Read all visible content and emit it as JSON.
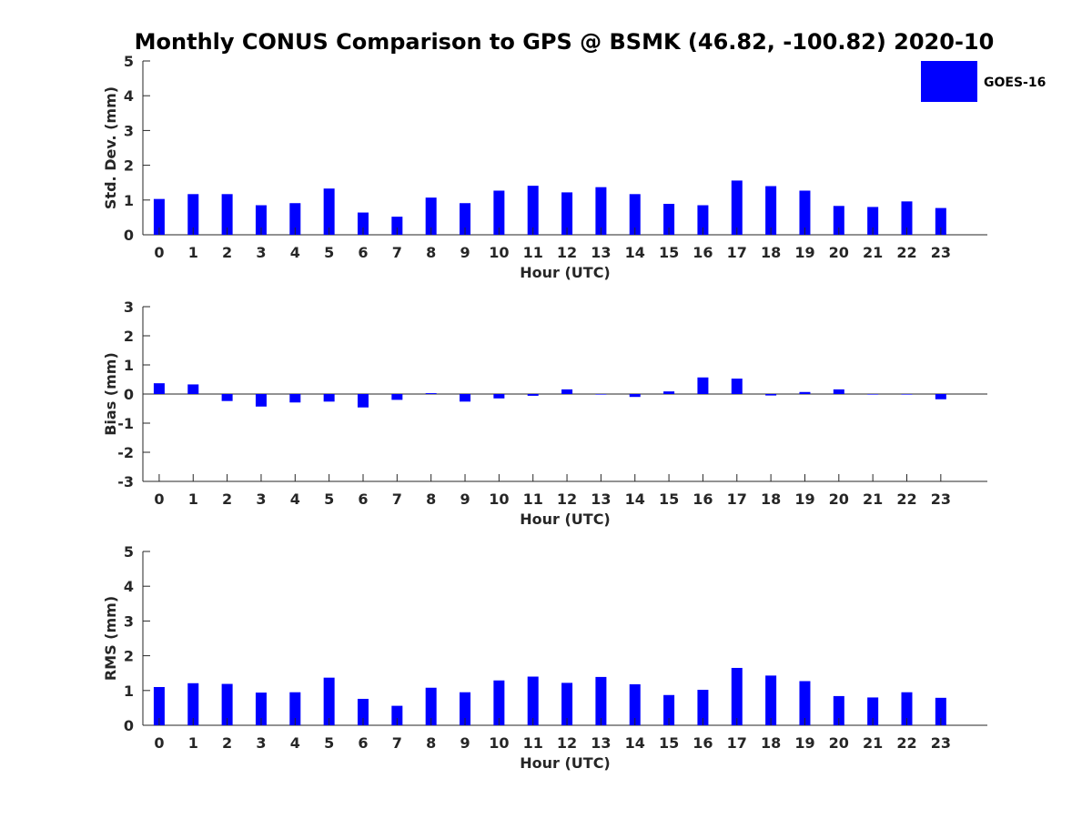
{
  "title": "Monthly CONUS Comparison to GPS @ BSMK (46.82, -100.82) 2020-10",
  "legend": {
    "label": "GOES-16",
    "position": "top-right",
    "color": "#0000ff"
  },
  "chart_data": [
    {
      "type": "bar",
      "xlabel": "Hour (UTC)",
      "ylabel": "Std. Dev. (mm)",
      "ylim": [
        0,
        5
      ],
      "yticks": [
        0,
        1,
        2,
        3,
        4,
        5
      ],
      "grid": false,
      "categories": [
        0,
        1,
        2,
        3,
        4,
        5,
        6,
        7,
        8,
        9,
        10,
        11,
        12,
        13,
        14,
        15,
        16,
        17,
        18,
        19,
        20,
        21,
        22,
        23
      ],
      "series": [
        {
          "name": "GOES-16",
          "color": "#0000ff",
          "values": [
            1.03,
            1.17,
            1.17,
            0.85,
            0.91,
            1.33,
            0.64,
            0.52,
            1.07,
            0.91,
            1.27,
            1.41,
            1.22,
            1.37,
            1.17,
            0.89,
            0.85,
            1.56,
            1.4,
            1.27,
            0.83,
            0.8,
            0.96,
            0.77
          ]
        }
      ]
    },
    {
      "type": "bar",
      "xlabel": "Hour (UTC)",
      "ylabel": "Bias (mm)",
      "ylim": [
        -3,
        3
      ],
      "yticks": [
        -3,
        -2,
        -1,
        0,
        1,
        2,
        3
      ],
      "grid": false,
      "categories": [
        0,
        1,
        2,
        3,
        4,
        5,
        6,
        7,
        8,
        9,
        10,
        11,
        12,
        13,
        14,
        15,
        16,
        17,
        18,
        19,
        20,
        21,
        22,
        23
      ],
      "series": [
        {
          "name": "GOES-16",
          "color": "#0000ff",
          "values": [
            0.37,
            0.33,
            -0.24,
            -0.43,
            -0.29,
            -0.26,
            -0.46,
            -0.2,
            0.03,
            -0.26,
            -0.15,
            -0.06,
            0.16,
            -0.01,
            -0.1,
            0.09,
            0.57,
            0.53,
            -0.05,
            0.07,
            0.16,
            -0.01,
            -0.01,
            -0.18
          ]
        }
      ]
    },
    {
      "type": "bar",
      "xlabel": "Hour (UTC)",
      "ylabel": "RMS (mm)",
      "ylim": [
        0,
        5
      ],
      "yticks": [
        0,
        1,
        2,
        3,
        4,
        5
      ],
      "grid": false,
      "categories": [
        0,
        1,
        2,
        3,
        4,
        5,
        6,
        7,
        8,
        9,
        10,
        11,
        12,
        13,
        14,
        15,
        16,
        17,
        18,
        19,
        20,
        21,
        22,
        23
      ],
      "series": [
        {
          "name": "GOES-16",
          "color": "#0000ff",
          "values": [
            1.1,
            1.21,
            1.19,
            0.94,
            0.95,
            1.37,
            0.76,
            0.56,
            1.08,
            0.95,
            1.29,
            1.4,
            1.22,
            1.39,
            1.18,
            0.87,
            1.02,
            1.65,
            1.43,
            1.27,
            0.84,
            0.8,
            0.95,
            0.79
          ]
        }
      ]
    }
  ]
}
